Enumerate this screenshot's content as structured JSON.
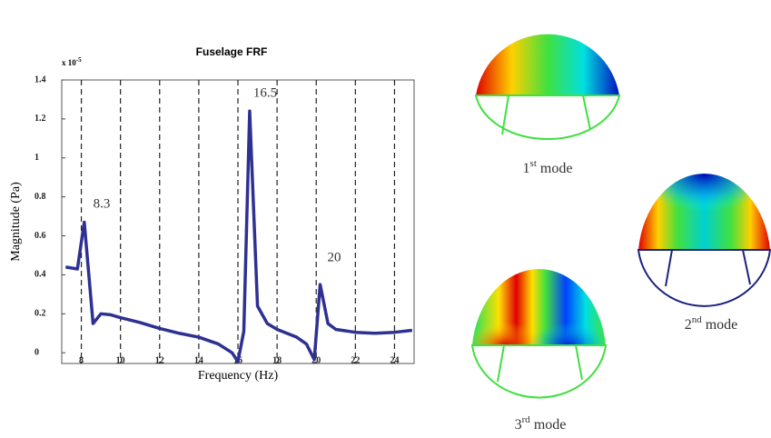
{
  "chart_data": {
    "type": "line",
    "title": "Fuselage FRF",
    "x_label": "Frequency (Hz)",
    "y_label": "Magnitude (Pa)",
    "y_multiplier": {
      "base": "x 10",
      "exponent": "-5"
    },
    "x": [
      7.2,
      7.8,
      8.15,
      8.6,
      9,
      9.5,
      10,
      11,
      12,
      13,
      14,
      15,
      15.7,
      16,
      16.3,
      16.6,
      17,
      17.5,
      18,
      19,
      19.5,
      19.9,
      20.2,
      20.6,
      21,
      22,
      23,
      24,
      24.9
    ],
    "series": [
      {
        "color": "#2e3192",
        "values": [
          0.44,
          0.43,
          0.67,
          0.15,
          0.2,
          0.195,
          0.18,
          0.155,
          0.125,
          0.1,
          0.08,
          0.045,
          0.0,
          -0.045,
          0.11,
          1.24,
          0.24,
          0.15,
          0.12,
          0.08,
          0.045,
          -0.035,
          0.35,
          0.15,
          0.12,
          0.105,
          0.1,
          0.105,
          0.115
        ]
      }
    ],
    "xlim": [
      7,
      25
    ],
    "ylim": [
      -0.055,
      1.4
    ],
    "xticks": [
      8,
      10,
      12,
      14,
      16,
      18,
      20,
      22,
      24
    ],
    "yticks": [
      0,
      0.2,
      0.4,
      0.6,
      0.8,
      1,
      1.2,
      1.4
    ],
    "grid_x": true,
    "annotations": [
      "8.3",
      "16.5",
      "20"
    ]
  },
  "modes": [
    {
      "ordinal": "1",
      "suffix": "st",
      "label": "mode"
    },
    {
      "ordinal": "2",
      "suffix": "nd",
      "label": "mode"
    },
    {
      "ordinal": "3",
      "suffix": "rd",
      "label": "mode"
    }
  ]
}
